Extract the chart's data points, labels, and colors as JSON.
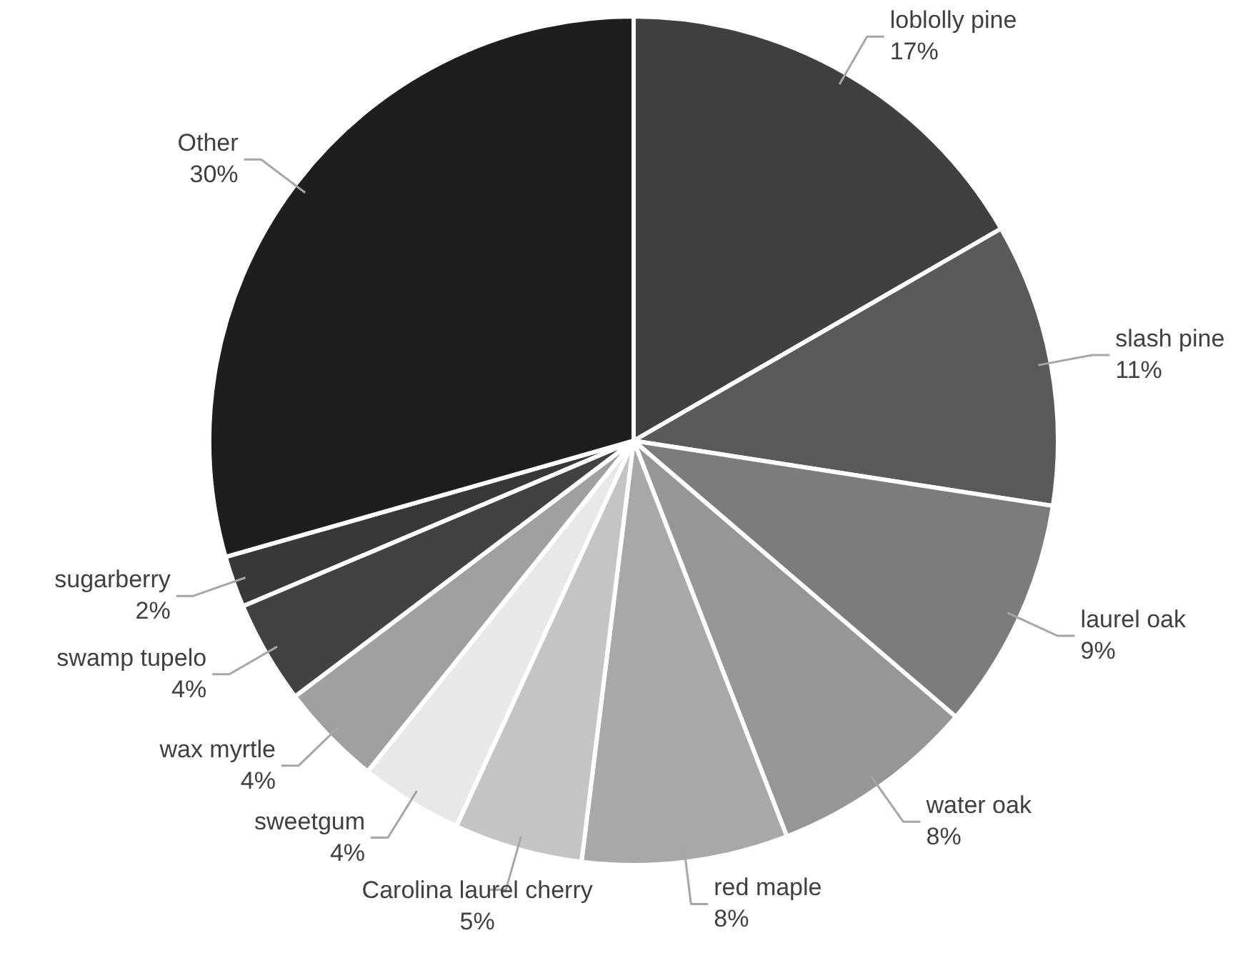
{
  "chart_data": {
    "type": "pie",
    "categories": [
      "loblolly pine",
      "slash pine",
      "laurel oak",
      "water oak",
      "red maple",
      "Carolina laurel cherry",
      "sweetgum",
      "wax myrtle",
      "swamp tupelo",
      "sugarberry",
      "Other"
    ],
    "values": [
      17,
      11,
      9,
      8,
      8,
      5,
      4,
      4,
      4,
      2,
      30
    ],
    "colors": [
      "#404040",
      "#5a5a5a",
      "#7c7c7c",
      "#969696",
      "#a8a8a8",
      "#c4c4c4",
      "#e8e8e8",
      "#a0a0a0",
      "#424242",
      "#383838",
      "#1e1e1e"
    ],
    "value_labels": [
      "17%",
      "11%",
      "9%",
      "8%",
      "8%",
      "5%",
      "4%",
      "4%",
      "4%",
      "2%",
      "30%"
    ]
  }
}
